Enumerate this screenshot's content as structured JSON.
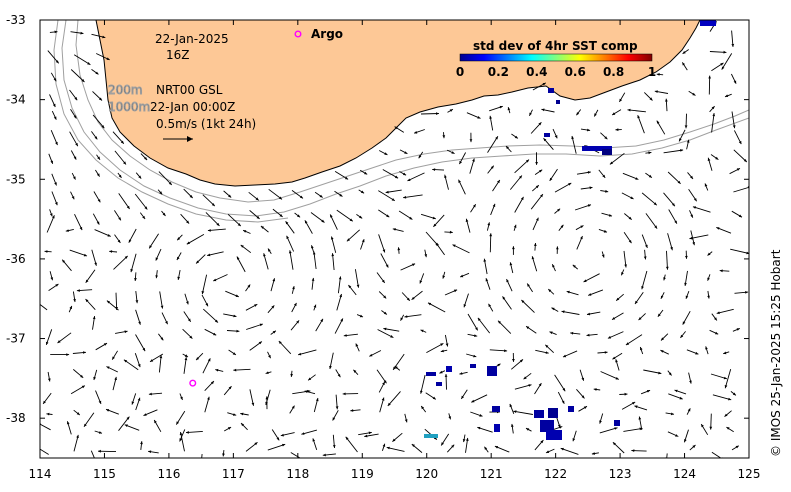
{
  "map": {
    "lon_range": [
      114,
      125
    ],
    "lat_range": [
      -38.5,
      -33
    ],
    "x_ticks": [
      "114",
      "115",
      "116",
      "117",
      "118",
      "119",
      "120",
      "121",
      "122",
      "123",
      "124",
      "125"
    ],
    "y_ticks": [
      "-33",
      "-34",
      "-35",
      "-36",
      "-37",
      "-38"
    ],
    "land_color": "#fdc896",
    "coast_color": "#000000",
    "isobath_color": "#a0a0a0"
  },
  "info": {
    "date": "22-Jan-2025",
    "time": "16Z",
    "isobath_label": "200m\n1000m",
    "model": "NRT00 GSL",
    "model_time": "22-Jan 00:00Z",
    "scale_label": "0.5m/s (1kt 24h)"
  },
  "legend": {
    "argo_label": "Argo",
    "argo_color": "#ff00ff"
  },
  "colorbar": {
    "title": "std dev of 4hr SST comp",
    "ticks": [
      "0",
      "0.2",
      "0.4",
      "0.6",
      "0.8",
      "1"
    ]
  },
  "argo_floats": [
    {
      "lon": 116.37,
      "lat": -37.56
    }
  ],
  "credit": "© IMOS 25-Jan-2025 15:25 Hobart"
}
